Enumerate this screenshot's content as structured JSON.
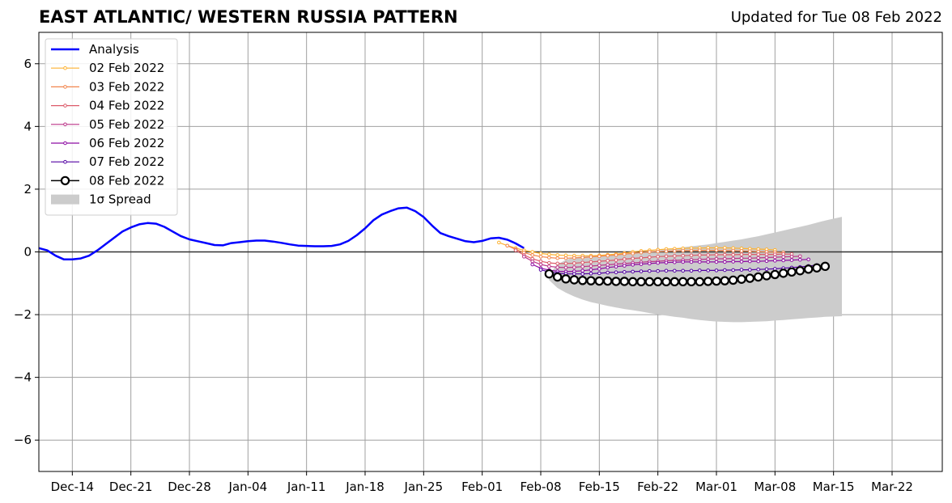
{
  "header": {
    "title": "EAST ATLANTIC/ WESTERN RUSSIA PATTERN",
    "updated": "Updated for Tue 08 Feb 2022"
  },
  "chart_data": {
    "type": "line",
    "title": "EAST ATLANTIC/ WESTERN RUSSIA PATTERN",
    "subtitle": "Updated for Tue 08 Feb 2022",
    "xlabel": "",
    "ylabel": "",
    "x_range": [
      "2021-12-10",
      "2022-03-28"
    ],
    "ylim": [
      -7,
      7
    ],
    "x_ticks": [
      {
        "date": "2021-12-14",
        "label": "Dec-14"
      },
      {
        "date": "2021-12-21",
        "label": "Dec-21"
      },
      {
        "date": "2021-12-28",
        "label": "Dec-28"
      },
      {
        "date": "2022-01-04",
        "label": "Jan-04"
      },
      {
        "date": "2022-01-11",
        "label": "Jan-11"
      },
      {
        "date": "2022-01-18",
        "label": "Jan-18"
      },
      {
        "date": "2022-01-25",
        "label": "Jan-25"
      },
      {
        "date": "2022-02-01",
        "label": "Feb-01"
      },
      {
        "date": "2022-02-08",
        "label": "Feb-08"
      },
      {
        "date": "2022-02-15",
        "label": "Feb-15"
      },
      {
        "date": "2022-02-22",
        "label": "Feb-22"
      },
      {
        "date": "2022-03-01",
        "label": "Mar-01"
      },
      {
        "date": "2022-03-08",
        "label": "Mar-08"
      },
      {
        "date": "2022-03-15",
        "label": "Mar-15"
      },
      {
        "date": "2022-03-22",
        "label": "Mar-22"
      }
    ],
    "y_ticks": [
      {
        "value": 6,
        "label": "6"
      },
      {
        "value": 4,
        "label": "4"
      },
      {
        "value": 2,
        "label": "2"
      },
      {
        "value": 0,
        "label": "0"
      },
      {
        "value": -2,
        "label": "−2"
      },
      {
        "value": -4,
        "label": "−4"
      },
      {
        "value": -6,
        "label": "−6"
      }
    ],
    "grid": true,
    "legend_position": "top-left",
    "legend": [
      {
        "label": "Analysis",
        "kind": "line",
        "color": "#0000ff"
      },
      {
        "label": "02 Feb 2022",
        "kind": "line-marker",
        "color": "#fdb130"
      },
      {
        "label": "03 Feb 2022",
        "kind": "line-marker",
        "color": "#f2854d"
      },
      {
        "label": "04 Feb 2022",
        "kind": "line-marker",
        "color": "#dc5b6a"
      },
      {
        "label": "05 Feb 2022",
        "kind": "line-marker",
        "color": "#bb3488"
      },
      {
        "label": "06 Feb 2022",
        "kind": "line-marker",
        "color": "#8e0ca3"
      },
      {
        "label": "07 Feb 2022",
        "kind": "line-marker",
        "color": "#5302a3"
      },
      {
        "label": "08 Feb 2022",
        "kind": "open-circle",
        "color": "#000000"
      },
      {
        "label": "1σ Spread",
        "kind": "patch",
        "color": "#cccccc"
      }
    ],
    "analysis": {
      "name": "Analysis",
      "color": "#0000ff",
      "start_date": "2021-12-10",
      "values": [
        0.12,
        0.05,
        -0.12,
        -0.24,
        -0.24,
        -0.21,
        -0.12,
        0.05,
        0.25,
        0.45,
        0.65,
        0.78,
        0.88,
        0.92,
        0.9,
        0.8,
        0.65,
        0.5,
        0.4,
        0.34,
        0.28,
        0.22,
        0.21,
        0.28,
        0.31,
        0.34,
        0.36,
        0.36,
        0.33,
        0.29,
        0.24,
        0.2,
        0.19,
        0.18,
        0.18,
        0.19,
        0.24,
        0.35,
        0.53,
        0.75,
        1.01,
        1.19,
        1.3,
        1.39,
        1.41,
        1.3,
        1.11,
        0.84,
        0.6,
        0.5,
        0.42,
        0.34,
        0.31,
        0.35,
        0.43,
        0.45,
        0.39,
        0.27,
        0.12
      ]
    },
    "forecasts": [
      {
        "name": "02 Feb 2022",
        "color": "#fdb130",
        "start_date": "2022-02-03",
        "values": [
          0.3,
          0.2,
          0.12,
          0.05,
          0,
          -0.05,
          -0.08,
          -0.1,
          -0.11,
          -0.12,
          -0.12,
          -0.12,
          -0.11,
          -0.09,
          -0.07,
          -0.04,
          0,
          0.03,
          0.05,
          0.07,
          0.09,
          0.1,
          0.11,
          0.12,
          0.12,
          0.13,
          0.13,
          0.13,
          0.12,
          0.11,
          0.1,
          0.09,
          0.08,
          0.06
        ]
      },
      {
        "name": "03 Feb 2022",
        "color": "#f2854d",
        "start_date": "2022-02-04",
        "values": [
          0.2,
          0.08,
          -0.02,
          -0.1,
          -0.15,
          -0.18,
          -0.2,
          -0.2,
          -0.19,
          -0.18,
          -0.16,
          -0.14,
          -0.12,
          -0.1,
          -0.07,
          -0.05,
          -0.02,
          0,
          0.01,
          0.02,
          0.03,
          0.04,
          0.04,
          0.05,
          0.05,
          0.05,
          0.04,
          0.04,
          0.03,
          0.02,
          0.01,
          0,
          -0.01,
          -0.02
        ]
      },
      {
        "name": "04 Feb 2022",
        "color": "#dc5b6a",
        "start_date": "2022-02-05",
        "values": [
          0.05,
          -0.1,
          -0.22,
          -0.3,
          -0.35,
          -0.37,
          -0.37,
          -0.36,
          -0.34,
          -0.32,
          -0.3,
          -0.28,
          -0.26,
          -0.23,
          -0.21,
          -0.19,
          -0.17,
          -0.15,
          -0.14,
          -0.13,
          -0.12,
          -0.11,
          -0.1,
          -0.1,
          -0.09,
          -0.09,
          -0.09,
          -0.08,
          -0.08,
          -0.08,
          -0.08,
          -0.08,
          -0.07,
          -0.07
        ]
      },
      {
        "name": "05 Feb 2022",
        "color": "#bb3488",
        "start_date": "2022-02-06",
        "values": [
          -0.15,
          -0.3,
          -0.4,
          -0.46,
          -0.49,
          -0.5,
          -0.49,
          -0.47,
          -0.45,
          -0.43,
          -0.41,
          -0.39,
          -0.37,
          -0.35,
          -0.33,
          -0.31,
          -0.3,
          -0.28,
          -0.27,
          -0.26,
          -0.25,
          -0.24,
          -0.23,
          -0.22,
          -0.22,
          -0.21,
          -0.2,
          -0.2,
          -0.19,
          -0.18,
          -0.17,
          -0.16,
          -0.15,
          -0.14
        ]
      },
      {
        "name": "06 Feb 2022",
        "color": "#8e0ca3",
        "start_date": "2022-02-07",
        "values": [
          -0.4,
          -0.52,
          -0.58,
          -0.62,
          -0.63,
          -0.62,
          -0.6,
          -0.57,
          -0.54,
          -0.5,
          -0.47,
          -0.44,
          -0.41,
          -0.39,
          -0.37,
          -0.35,
          -0.34,
          -0.33,
          -0.32,
          -0.32,
          -0.32,
          -0.32,
          -0.32,
          -0.32,
          -0.31,
          -0.31,
          -0.3,
          -0.3,
          -0.29,
          -0.28,
          -0.27,
          -0.26,
          -0.25,
          -0.24
        ]
      },
      {
        "name": "07 Feb 2022",
        "color": "#5302a3",
        "start_date": "2022-02-08",
        "values": [
          -0.57,
          -0.64,
          -0.68,
          -0.7,
          -0.7,
          -0.7,
          -0.69,
          -0.68,
          -0.66,
          -0.65,
          -0.64,
          -0.63,
          -0.62,
          -0.61,
          -0.61,
          -0.6,
          -0.6,
          -0.6,
          -0.6,
          -0.59,
          -0.59,
          -0.59,
          -0.58,
          -0.58,
          -0.57,
          -0.57,
          -0.56,
          -0.55,
          -0.54,
          -0.52,
          -0.5,
          -0.48,
          -0.45,
          -0.42
        ]
      },
      {
        "name": "08 Feb 2022",
        "color": "#000000",
        "start_date": "2022-02-09",
        "marker": "open-circle",
        "values": [
          -0.7,
          -0.8,
          -0.86,
          -0.89,
          -0.91,
          -0.92,
          -0.93,
          -0.93,
          -0.94,
          -0.94,
          -0.95,
          -0.95,
          -0.95,
          -0.95,
          -0.95,
          -0.95,
          -0.95,
          -0.95,
          -0.95,
          -0.94,
          -0.93,
          -0.92,
          -0.9,
          -0.87,
          -0.84,
          -0.8,
          -0.76,
          -0.72,
          -0.68,
          -0.64,
          -0.6,
          -0.55,
          -0.51,
          -0.46
        ]
      }
    ],
    "spread": {
      "name": "1σ Spread",
      "color": "#cccccc",
      "start_date": "2022-02-09",
      "upper": [
        -0.7,
        -0.4,
        -0.25,
        -0.18,
        -0.14,
        -0.12,
        -0.1,
        -0.09,
        -0.07,
        -0.05,
        -0.03,
        0,
        0.02,
        0.05,
        0.08,
        0.11,
        0.15,
        0.18,
        0.21,
        0.24,
        0.28,
        0.32,
        0.36,
        0.4,
        0.45,
        0.5,
        0.56,
        0.62,
        0.68,
        0.74,
        0.8,
        0.86,
        0.93,
        1.0,
        1.06,
        1.12
      ],
      "lower": [
        -0.9,
        -1.15,
        -1.3,
        -1.42,
        -1.52,
        -1.6,
        -1.66,
        -1.72,
        -1.77,
        -1.82,
        -1.86,
        -1.9,
        -1.95,
        -1.99,
        -2.03,
        -2.07,
        -2.1,
        -2.14,
        -2.17,
        -2.2,
        -2.22,
        -2.23,
        -2.24,
        -2.24,
        -2.23,
        -2.22,
        -2.21,
        -2.19,
        -2.17,
        -2.15,
        -2.13,
        -2.11,
        -2.09,
        -2.07,
        -2.06,
        -2.05
      ]
    }
  }
}
